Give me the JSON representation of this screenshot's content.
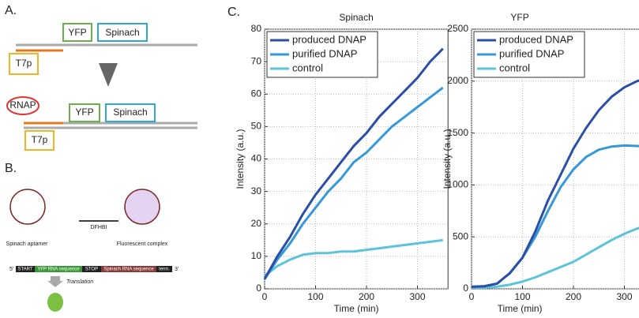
{
  "diagram": {
    "panel_a": {
      "label": "A.",
      "reporter": "YFP",
      "aptamer": "Spinach",
      "promoter": "T7p",
      "polymerase": "RNAP"
    },
    "panel_b": {
      "label": "B.",
      "aptamer_name": "Spinach aptamer",
      "ligand": "DFHBI",
      "complex": "Fluorescent complex",
      "construct": [
        "5'",
        "START",
        "YFP RNA sequence",
        "STOP",
        "Spinach RNA sequence",
        "term.",
        "3'"
      ],
      "translation": "Translation"
    },
    "panel_c": {
      "label": "C."
    }
  },
  "chart_data": [
    {
      "type": "line",
      "title": "Spinach",
      "x_label": "Time (min)",
      "y_label": "Intensity (a.u.)",
      "x": [
        0,
        25,
        50,
        75,
        100,
        125,
        150,
        175,
        200,
        225,
        250,
        275,
        300,
        325,
        350
      ],
      "series": [
        {
          "name": "produced DNAP",
          "color": "#2b4ea6",
          "values": [
            3,
            10,
            16,
            23,
            29,
            34,
            39,
            44,
            48,
            53,
            57,
            61,
            65,
            70,
            74
          ]
        },
        {
          "name": "purified DNAP",
          "color": "#3598d8",
          "values": [
            3,
            9,
            14,
            20,
            25,
            30,
            34,
            39,
            42,
            46,
            50,
            53,
            56,
            59,
            62
          ]
        },
        {
          "name": "control",
          "color": "#5cc3d8",
          "values": [
            4,
            7,
            9,
            10.5,
            11,
            11,
            11.5,
            11.5,
            12,
            12.5,
            13,
            13.5,
            14,
            14.5,
            15
          ]
        }
      ],
      "xlim": [
        0,
        360
      ],
      "xticks": [
        0,
        100,
        200,
        300
      ],
      "ylim": [
        0,
        80
      ],
      "yticks": [
        0,
        10,
        20,
        30,
        40,
        50,
        60,
        70,
        80
      ],
      "grid": true,
      "legend": "upper-left"
    },
    {
      "type": "line",
      "title": "YFP",
      "x_label": "Time (min)",
      "y_label": "Intensity (a.u.)",
      "x": [
        0,
        25,
        50,
        75,
        100,
        125,
        150,
        175,
        200,
        225,
        250,
        275,
        300,
        325,
        350
      ],
      "series": [
        {
          "name": "produced DNAP",
          "color": "#2b4ea6",
          "values": [
            20,
            25,
            50,
            150,
            300,
            550,
            850,
            1100,
            1350,
            1550,
            1720,
            1850,
            1940,
            2000,
            2030
          ]
        },
        {
          "name": "purified DNAP",
          "color": "#3598d8",
          "values": [
            20,
            25,
            50,
            150,
            300,
            500,
            750,
            980,
            1150,
            1270,
            1340,
            1370,
            1380,
            1375,
            1370
          ]
        },
        {
          "name": "control",
          "color": "#5cc3d8",
          "values": [
            10,
            12,
            20,
            40,
            70,
            110,
            160,
            210,
            260,
            330,
            400,
            470,
            530,
            580,
            620
          ]
        }
      ],
      "xlim": [
        0,
        360
      ],
      "xticks": [
        0,
        100,
        200,
        300
      ],
      "ylim": [
        0,
        2500
      ],
      "yticks": [
        0,
        500,
        1000,
        1500,
        2000,
        2500
      ],
      "grid": true,
      "legend": "upper-left"
    }
  ]
}
